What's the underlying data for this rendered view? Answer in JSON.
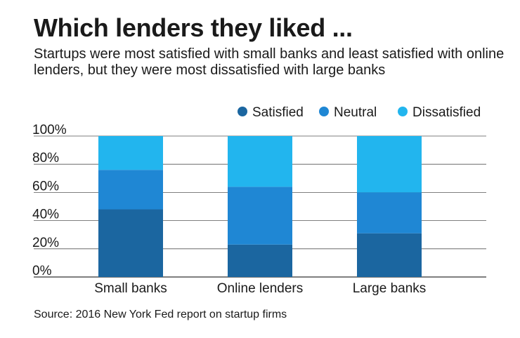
{
  "chart_data": {
    "type": "bar",
    "stacked": true,
    "title": "Which lenders they liked ...",
    "subtitle": "Startups were most satisfied with small banks and least satisfied with online lenders, but they were most dissatisfied with large banks",
    "categories": [
      "Small banks",
      "Online lenders",
      "Large banks"
    ],
    "series": [
      {
        "name": "Satisfied",
        "color": "#1b66a0",
        "values": [
          48,
          23,
          31
        ]
      },
      {
        "name": "Neutral",
        "color": "#1f87d4",
        "values": [
          28,
          41,
          29
        ]
      },
      {
        "name": "Dissatisfied",
        "color": "#22b5ee",
        "values": [
          24,
          36,
          40
        ]
      }
    ],
    "yticks": [
      "0%",
      "20%",
      "40%",
      "60%",
      "80%",
      "100%"
    ],
    "ylim": [
      0,
      100
    ],
    "grid": true,
    "legend_position": "top-right",
    "source": "Source: 2016 New York Fed report on startup firms"
  }
}
